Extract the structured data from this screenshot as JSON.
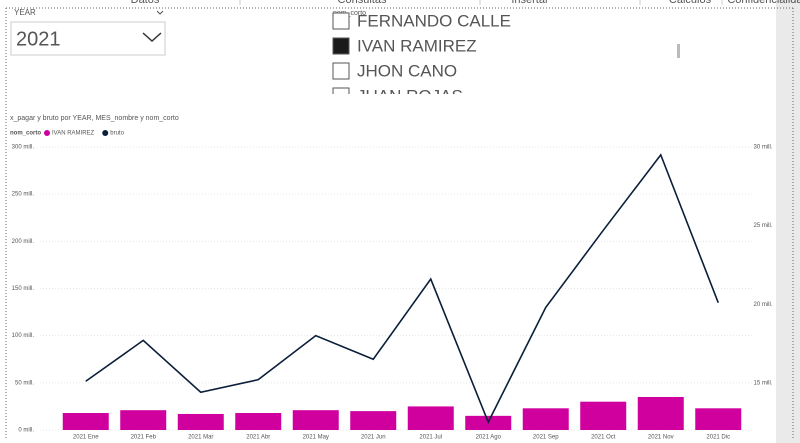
{
  "ribbon": {
    "tabs": [
      "Datos",
      "Consultas",
      "Insertar",
      "Cálculos",
      "Confidencialidad"
    ]
  },
  "slicer": {
    "label": "YEAR",
    "value": "2021"
  },
  "list": {
    "header": "nom_corto",
    "items": [
      {
        "label": "FERNANDO CALLE",
        "checked": false
      },
      {
        "label": "IVAN RAMIREZ",
        "checked": true
      },
      {
        "label": "JHON CANO",
        "checked": false
      },
      {
        "label": "JUAN ROJAS",
        "checked": false
      }
    ]
  },
  "chart_data": {
    "type": "bar-line",
    "title": "x_pagar y bruto por YEAR, MES_nombre y nom_corto",
    "legend_title": "nom_corto",
    "categories": [
      "2021 Ene",
      "2021 Feb",
      "2021 Mar",
      "2021 Abr",
      "2021 May",
      "2021 Jun",
      "2021 Jul",
      "2021 Ago",
      "2021 Sep",
      "2021 Oct",
      "2021 Nov",
      "2021 Dic"
    ],
    "series": [
      {
        "name": "IVAN RAMIREZ",
        "color": "#d0009e",
        "type": "bar",
        "values": [
          18,
          21,
          17,
          18,
          21,
          20,
          25,
          15,
          23,
          30,
          35,
          23
        ]
      },
      {
        "name": "bruto",
        "color": "#0b1f3a",
        "type": "line",
        "axis": "y2",
        "values": [
          15.1,
          17.7,
          14.4,
          15.2,
          18.0,
          16.5,
          21.6,
          12.5,
          19.8,
          24.7,
          29.5,
          20.1
        ]
      }
    ],
    "ylim": [
      0,
      300
    ],
    "yticks": [
      {
        "value": 0,
        "label": "0 mill."
      },
      {
        "value": 50,
        "label": "50 mill."
      },
      {
        "value": 100,
        "label": "100 mill."
      },
      {
        "value": 150,
        "label": "150 mill."
      },
      {
        "value": 200,
        "label": "200 mill."
      },
      {
        "value": 250,
        "label": "250 mill."
      },
      {
        "value": 300,
        "label": "300 mill."
      }
    ],
    "y2lim": [
      12,
      30
    ],
    "y2ticks": [
      {
        "value": 15,
        "label": "15 mill."
      },
      {
        "value": 20,
        "label": "20 mill."
      },
      {
        "value": 25,
        "label": "25 mill."
      },
      {
        "value": 30,
        "label": "30 mill."
      }
    ],
    "grid": true
  }
}
